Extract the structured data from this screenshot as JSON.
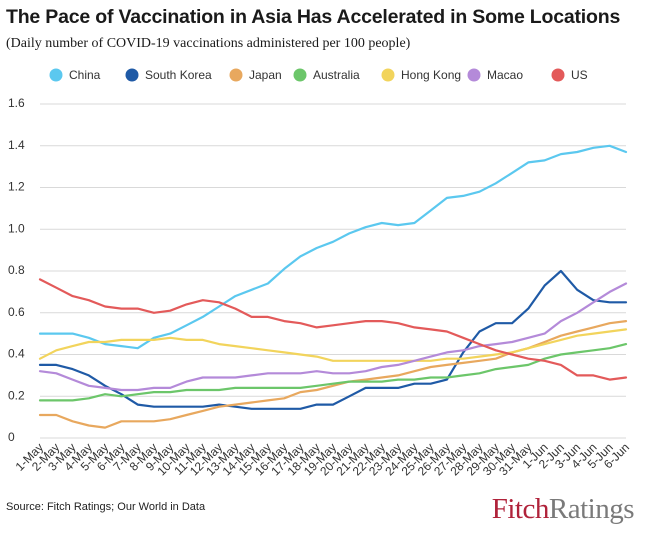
{
  "header": {
    "title": "The Pace of Vaccination in Asia Has Accelerated in Some Locations",
    "subtitle": "(Daily number of COVID-19 vaccinations administered per 100 people)"
  },
  "footer": {
    "source": "Source: Fitch Ratings; Our World in Data",
    "logo_part1": "Fitch",
    "logo_part2": "Ratings"
  },
  "chart_data": {
    "type": "line",
    "title": "The Pace of Vaccination in Asia Has Accelerated in Some Locations",
    "subtitle": "(Daily number of COVID-19 vaccinations administered per 100 people)",
    "xlabel": "",
    "ylabel": "",
    "ylim": [
      0,
      1.6
    ],
    "yticks": [
      0,
      0.2,
      0.4,
      0.6,
      0.8,
      1.0,
      1.2,
      1.4,
      1.6
    ],
    "ytick_labels": [
      "0",
      "0.2",
      "0.4",
      "0.6",
      "0.8",
      "1.0",
      "1.2",
      "1.4",
      "1.6"
    ],
    "grid": "horizontal",
    "legend_position": "top",
    "categories": [
      "1-May",
      "2-May",
      "3-May",
      "4-May",
      "5-May",
      "6-May",
      "7-May",
      "8-May",
      "9-May",
      "10-May",
      "11-May",
      "12-May",
      "13-May",
      "14-May",
      "15-May",
      "16-May",
      "17-May",
      "18-May",
      "19-May",
      "20-May",
      "21-May",
      "22-May",
      "23-May",
      "24-May",
      "25-May",
      "26-May",
      "27-May",
      "28-May",
      "29-May",
      "30-May",
      "31-May",
      "1-Jun",
      "2-Jun",
      "3-Jun",
      "4-Jun",
      "5-Jun",
      "6-Jun"
    ],
    "series": [
      {
        "name": "China",
        "color": "#5bc8ef",
        "values": [
          0.5,
          0.5,
          0.5,
          0.48,
          0.45,
          0.44,
          0.43,
          0.48,
          0.5,
          0.54,
          0.58,
          0.63,
          0.68,
          0.71,
          0.74,
          0.81,
          0.87,
          0.91,
          0.94,
          0.98,
          1.01,
          1.03,
          1.02,
          1.03,
          1.09,
          1.15,
          1.16,
          1.18,
          1.22,
          1.27,
          1.32,
          1.33,
          1.36,
          1.37,
          1.39,
          1.4,
          1.37
        ]
      },
      {
        "name": "South Korea",
        "color": "#1f5aa6",
        "values": [
          0.35,
          0.35,
          0.33,
          0.3,
          0.25,
          0.21,
          0.16,
          0.15,
          0.15,
          0.15,
          0.15,
          0.16,
          0.15,
          0.14,
          0.14,
          0.14,
          0.14,
          0.16,
          0.16,
          0.2,
          0.24,
          0.24,
          0.24,
          0.26,
          0.26,
          0.28,
          0.41,
          0.51,
          0.55,
          0.55,
          0.62,
          0.73,
          0.8,
          0.71,
          0.66,
          0.65,
          0.65
        ]
      },
      {
        "name": "Japan",
        "color": "#e8a85e",
        "values": [
          0.11,
          0.11,
          0.08,
          0.06,
          0.05,
          0.08,
          0.08,
          0.08,
          0.09,
          0.11,
          0.13,
          0.15,
          0.16,
          0.17,
          0.18,
          0.19,
          0.22,
          0.23,
          0.25,
          0.27,
          0.28,
          0.29,
          0.3,
          0.32,
          0.34,
          0.35,
          0.36,
          0.37,
          0.38,
          0.41,
          0.43,
          0.46,
          0.49,
          0.51,
          0.53,
          0.55,
          0.56
        ]
      },
      {
        "name": "Australia",
        "color": "#6cc66a",
        "values": [
          0.18,
          0.18,
          0.18,
          0.19,
          0.21,
          0.2,
          0.21,
          0.22,
          0.22,
          0.23,
          0.23,
          0.23,
          0.24,
          0.24,
          0.24,
          0.24,
          0.24,
          0.25,
          0.26,
          0.27,
          0.27,
          0.27,
          0.28,
          0.28,
          0.29,
          0.29,
          0.3,
          0.31,
          0.33,
          0.34,
          0.35,
          0.38,
          0.4,
          0.41,
          0.42,
          0.43,
          0.45
        ]
      },
      {
        "name": "Hong Kong",
        "color": "#f2d45c",
        "values": [
          0.38,
          0.42,
          0.44,
          0.46,
          0.46,
          0.47,
          0.47,
          0.47,
          0.48,
          0.47,
          0.47,
          0.45,
          0.44,
          0.43,
          0.42,
          0.41,
          0.4,
          0.39,
          0.37,
          0.37,
          0.37,
          0.37,
          0.37,
          0.37,
          0.37,
          0.38,
          0.38,
          0.39,
          0.4,
          0.41,
          0.43,
          0.45,
          0.47,
          0.49,
          0.5,
          0.51,
          0.52
        ]
      },
      {
        "name": "Macao",
        "color": "#b48ad9",
        "values": [
          0.32,
          0.31,
          0.28,
          0.25,
          0.24,
          0.23,
          0.23,
          0.24,
          0.24,
          0.27,
          0.29,
          0.29,
          0.29,
          0.3,
          0.31,
          0.31,
          0.31,
          0.32,
          0.31,
          0.31,
          0.32,
          0.34,
          0.35,
          0.37,
          0.39,
          0.41,
          0.42,
          0.44,
          0.45,
          0.46,
          0.48,
          0.5,
          0.56,
          0.6,
          0.65,
          0.7,
          0.74
        ]
      },
      {
        "name": "US",
        "color": "#e35a5a",
        "values": [
          0.76,
          0.72,
          0.68,
          0.66,
          0.63,
          0.62,
          0.62,
          0.6,
          0.61,
          0.64,
          0.66,
          0.65,
          0.62,
          0.58,
          0.58,
          0.56,
          0.55,
          0.53,
          0.54,
          0.55,
          0.56,
          0.56,
          0.55,
          0.53,
          0.52,
          0.51,
          0.48,
          0.45,
          0.42,
          0.4,
          0.38,
          0.37,
          0.35,
          0.3,
          0.3,
          0.28,
          0.29
        ]
      }
    ]
  }
}
